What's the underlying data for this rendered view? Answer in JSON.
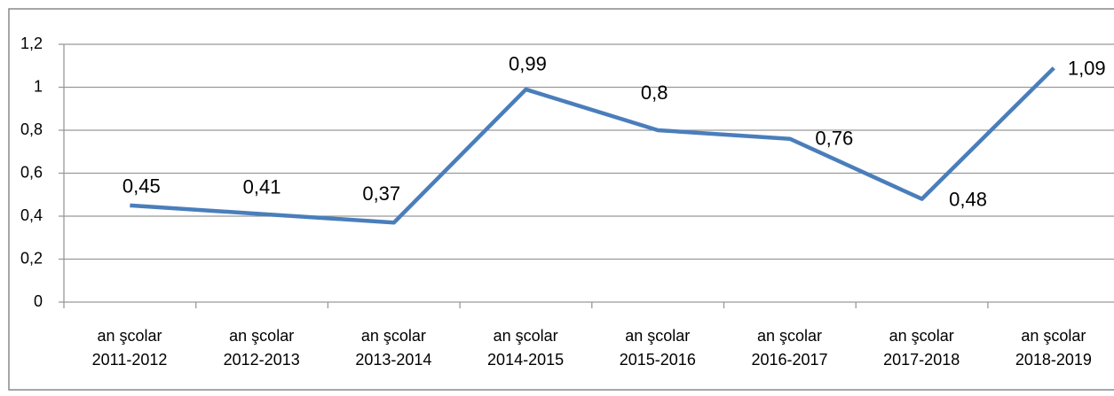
{
  "chart_data": {
    "type": "line",
    "categories": [
      "an şcolar\n2011-2012",
      "an şcolar\n2012-2013",
      "an şcolar\n2013-2014",
      "an şcolar\n2014-2015",
      "an şcolar\n2015-2016",
      "an şcolar\n2016-2017",
      "an şcolar\n2017-2018",
      "an şcolar\n2018-2019"
    ],
    "values": [
      0.45,
      0.41,
      0.37,
      0.99,
      0.8,
      0.76,
      0.48,
      1.09
    ],
    "value_labels": [
      "0,45",
      "0,41",
      "0,37",
      "0,99",
      "0,8",
      "0,76",
      "0,48",
      "1,09"
    ],
    "color": "#4a7ebb",
    "ylim": [
      0,
      1.2
    ],
    "yticks": [
      0,
      {
        "value": 0.2,
        "label": "0,2"
      },
      {
        "value": 0.4,
        "label": "0,4"
      },
      {
        "value": 0.6,
        "label": "0,6"
      },
      {
        "value": 0.8,
        "label": "0,8"
      },
      1,
      {
        "value": 1.2,
        "label": "1,2"
      }
    ],
    "grid": true
  }
}
